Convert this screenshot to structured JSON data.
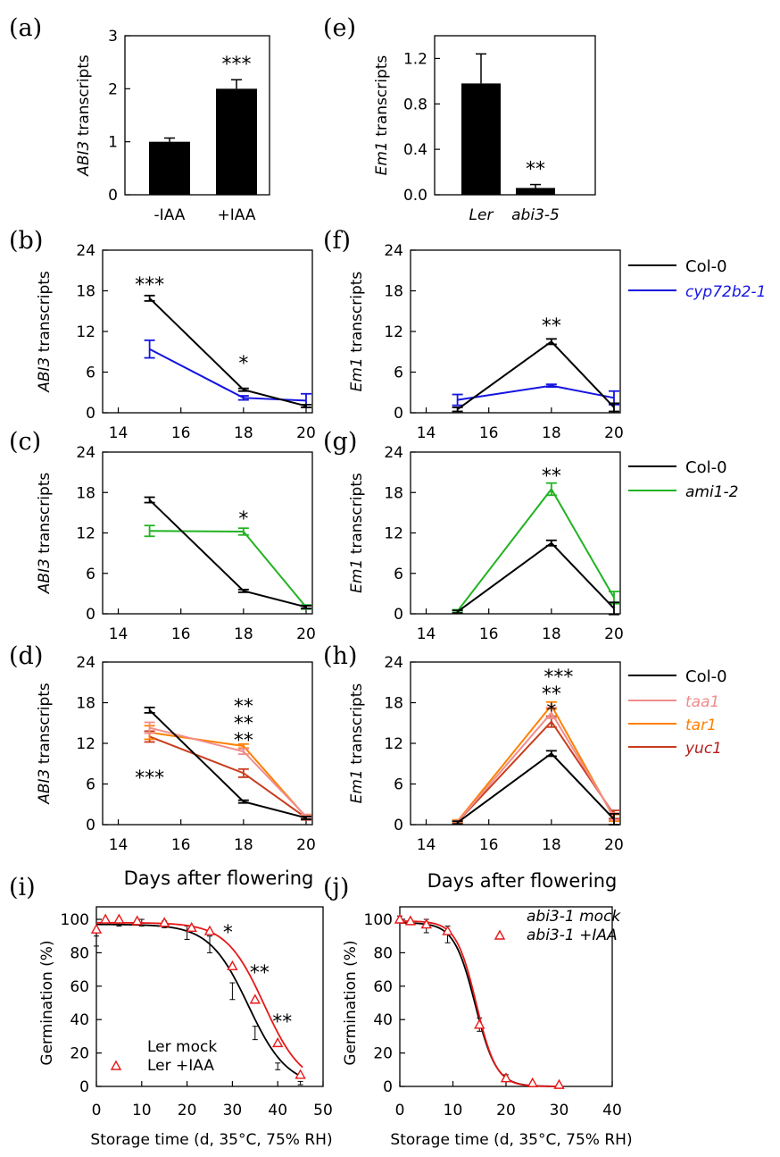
{
  "colors": {
    "black": "#000000",
    "blue": "#1515e0",
    "green": "#22b322",
    "pink": "#f08c8c",
    "orange": "#ff8000",
    "darkred": "#c83c1e",
    "red": "#e61919"
  },
  "xlabel_days": "Days after flowering",
  "xlabel_storage": "Storage time (d, 35°C, 75% RH)",
  "chart_data": [
    {
      "panel": "(a)",
      "type": "bar",
      "categories": [
        "-IAA",
        "+IAA"
      ],
      "values": [
        1.0,
        2.0
      ],
      "errors": [
        0.07,
        0.17
      ],
      "ylabel_italic": "ABI3",
      "ylabel_rest": " transcripts",
      "ylim": [
        0,
        3
      ],
      "yticks": [
        "0",
        "1",
        "2",
        "3"
      ],
      "annotations": [
        "",
        "***"
      ]
    },
    {
      "panel": "(e)",
      "type": "bar",
      "categories_italic": [
        "Ler",
        "abi3-5"
      ],
      "values": [
        0.98,
        0.06
      ],
      "errors": [
        0.26,
        0.03
      ],
      "ylabel_italic": "Em1",
      "ylabel_rest": " transcripts",
      "ylim": [
        0,
        1.4
      ],
      "yticks": [
        "0.0",
        "0.4",
        "0.8",
        "1.2"
      ],
      "annotations": [
        "",
        "**"
      ]
    },
    {
      "panel": "(b)",
      "type": "line",
      "x": [
        15,
        18,
        20
      ],
      "xticks": [
        "14",
        "16",
        "18",
        "20"
      ],
      "ylabel_italic": "ABI3",
      "ylabel_rest": " transcripts",
      "ylim": [
        0,
        24
      ],
      "yticks": [
        "0",
        "6",
        "12",
        "18",
        "24"
      ],
      "series": [
        {
          "name": "Col-0",
          "color": "#000000",
          "values": [
            16.9,
            3.4,
            1.0
          ],
          "errors": [
            0.4,
            0.2,
            0.2
          ]
        },
        {
          "name": "cyp72b2-1",
          "color": "#1515e0",
          "values": [
            9.4,
            2.2,
            1.8
          ],
          "errors": [
            1.3,
            0.3,
            1.0
          ]
        }
      ],
      "annotations": [
        {
          "x": 15,
          "text": "***"
        },
        {
          "x": 18,
          "text": "*"
        }
      ]
    },
    {
      "panel": "(f)",
      "type": "line",
      "x": [
        15,
        18,
        20
      ],
      "xticks": [
        "14",
        "16",
        "18",
        "20"
      ],
      "ylabel_italic": "Em1",
      "ylabel_rest": " transcripts",
      "ylim": [
        0,
        24
      ],
      "yticks": [
        "0",
        "6",
        "12",
        "18",
        "24"
      ],
      "series": [
        {
          "name": "Col-0",
          "color": "#000000",
          "values": [
            0.5,
            10.5,
            0.8
          ],
          "errors": [
            0.3,
            0.4,
            0.6
          ]
        },
        {
          "name": "cyp72b2-1",
          "color": "#1515e0",
          "values": [
            1.9,
            4.0,
            2.2
          ],
          "errors": [
            0.8,
            0.2,
            1.0
          ]
        }
      ],
      "annotations": [
        {
          "x": 18,
          "text": "**"
        }
      ]
    },
    {
      "panel": "(c)",
      "type": "line",
      "x": [
        15,
        18,
        20
      ],
      "xticks": [
        "14",
        "16",
        "18",
        "20"
      ],
      "ylabel_italic": "ABI3",
      "ylabel_rest": " transcripts",
      "ylim": [
        0,
        24
      ],
      "yticks": [
        "0",
        "6",
        "12",
        "18",
        "24"
      ],
      "series": [
        {
          "name": "Col-0",
          "color": "#000000",
          "values": [
            16.9,
            3.4,
            1.0
          ],
          "errors": [
            0.4,
            0.2,
            0.2
          ]
        },
        {
          "name": "ami1-2",
          "color": "#22b322",
          "values": [
            12.3,
            12.2,
            1.0
          ],
          "errors": [
            0.8,
            0.5,
            0.3
          ]
        }
      ],
      "annotations": [
        {
          "x": 18,
          "text": "*"
        }
      ]
    },
    {
      "panel": "(g)",
      "type": "line",
      "x": [
        15,
        18,
        20
      ],
      "xticks": [
        "14",
        "16",
        "18",
        "20"
      ],
      "ylabel_italic": "Em1",
      "ylabel_rest": " transcripts",
      "ylim": [
        0,
        24
      ],
      "yticks": [
        "0",
        "6",
        "12",
        "18",
        "24"
      ],
      "series": [
        {
          "name": "Col-0",
          "color": "#000000",
          "values": [
            0.3,
            10.5,
            0.8
          ],
          "errors": [
            0.2,
            0.4,
            0.9
          ]
        },
        {
          "name": "ami1-2",
          "color": "#22b322",
          "values": [
            0.4,
            18.5,
            2.4
          ],
          "errors": [
            0.2,
            0.9,
            0.9
          ]
        }
      ],
      "annotations": [
        {
          "x": 18,
          "text": "**"
        }
      ]
    },
    {
      "panel": "(d)",
      "type": "line",
      "x": [
        15,
        18,
        20
      ],
      "xticks": [
        "14",
        "16",
        "18",
        "20"
      ],
      "ylabel_italic": "ABI3",
      "ylabel_rest": " transcripts",
      "ylim": [
        0,
        24
      ],
      "yticks": [
        "0",
        "6",
        "12",
        "18",
        "24"
      ],
      "series": [
        {
          "name": "Col-0",
          "color": "#000000",
          "values": [
            16.9,
            3.4,
            1.0
          ],
          "errors": [
            0.4,
            0.2,
            0.2
          ]
        },
        {
          "name": "taa1",
          "color": "#f08c8c",
          "values": [
            14.3,
            10.8,
            1.2
          ],
          "errors": [
            0.8,
            0.4,
            0.3
          ]
        },
        {
          "name": "tar1",
          "color": "#ff8000",
          "values": [
            13.6,
            11.6,
            1.1
          ],
          "errors": [
            1.0,
            0.3,
            0.3
          ]
        },
        {
          "name": "yuc1",
          "color": "#c83c1e",
          "values": [
            13.0,
            7.6,
            1.0
          ],
          "errors": [
            0.8,
            0.6,
            0.3
          ]
        }
      ],
      "annotations": [
        {
          "x": 18,
          "text": "**"
        },
        {
          "x": 18,
          "text": "**"
        },
        {
          "x": 18,
          "text": "**"
        },
        {
          "x": 15,
          "text": "***"
        }
      ]
    },
    {
      "panel": "(h)",
      "type": "line",
      "x": [
        15,
        18,
        20
      ],
      "xticks": [
        "14",
        "16",
        "18",
        "20"
      ],
      "ylabel_italic": "Em1",
      "ylabel_rest": " transcripts",
      "ylim": [
        0,
        24
      ],
      "yticks": [
        "0",
        "6",
        "12",
        "18",
        "24"
      ],
      "series": [
        {
          "name": "Col-0",
          "color": "#000000",
          "values": [
            0.3,
            10.5,
            0.8
          ],
          "errors": [
            0.2,
            0.4,
            0.8
          ]
        },
        {
          "name": "taa1",
          "color": "#f08c8c",
          "values": [
            0.4,
            16.5,
            1.2
          ],
          "errors": [
            0.2,
            0.8,
            0.5
          ]
        },
        {
          "name": "tar1",
          "color": "#ff8000",
          "values": [
            0.5,
            17.6,
            1.0
          ],
          "errors": [
            0.2,
            0.5,
            0.5
          ]
        },
        {
          "name": "yuc1",
          "color": "#c83c1e",
          "values": [
            0.4,
            15.2,
            1.5
          ],
          "errors": [
            0.2,
            0.8,
            0.6
          ]
        }
      ],
      "annotations": [
        {
          "x": 18,
          "text": "***"
        },
        {
          "x": 18,
          "text": "**"
        },
        {
          "x": 18,
          "text": "*"
        }
      ]
    },
    {
      "panel": "(i)",
      "type": "scatter",
      "xlabel": "Storage time (d, 35°C, 75% RH)",
      "ylabel": "Germination (%)",
      "xlim": [
        0,
        50
      ],
      "ylim": [
        0,
        100
      ],
      "xticks": [
        "0",
        "10",
        "20",
        "30",
        "40",
        "50"
      ],
      "yticks": [
        "0",
        "20",
        "40",
        "60",
        "80",
        "100"
      ],
      "series": [
        {
          "name": "Ler mock",
          "color": "#000000",
          "marker": "none",
          "x": [
            0,
            5,
            10,
            15,
            20,
            25,
            30,
            35,
            40,
            45
          ],
          "values": [
            87,
            98,
            98,
            97,
            92,
            85,
            57,
            32,
            12,
            2
          ],
          "errors": [
            3,
            2,
            2,
            2,
            4,
            5,
            5,
            4,
            2,
            1
          ],
          "fit": {
            "top": 97,
            "x50": 33.5,
            "slope": 4.3
          }
        },
        {
          "name": "Ler +IAA",
          "color": "#e61919",
          "marker": "triangle",
          "x": [
            0,
            2,
            5,
            9,
            15,
            21,
            25,
            30,
            35,
            40,
            45
          ],
          "values": [
            94,
            100,
            100,
            99,
            98,
            95,
            93,
            72,
            52,
            26,
            7
          ],
          "fit": {
            "top": 98,
            "x50": 37,
            "slope": 4.2
          }
        }
      ],
      "annotations": [
        {
          "x": 29,
          "text": "*"
        },
        {
          "x": 36,
          "text": "**"
        },
        {
          "x": 41,
          "text": "**"
        }
      ]
    },
    {
      "panel": "(j)",
      "type": "scatter",
      "xlabel": "Storage time (d, 35°C, 75% RH)",
      "ylabel": "Germination (%)",
      "xlim": [
        0,
        40
      ],
      "ylim": [
        0,
        100
      ],
      "xticks": [
        "0",
        "10",
        "20",
        "30",
        "40"
      ],
      "yticks": [
        "0",
        "20",
        "40",
        "60",
        "80",
        "100"
      ],
      "series": [
        {
          "name": "abi3-1 mock",
          "color": "#000000",
          "marker": "none",
          "x": [
            0,
            5,
            9,
            15,
            20,
            25,
            30
          ],
          "values": [
            100,
            96,
            91,
            37,
            5,
            1,
            0
          ],
          "errors": [
            2,
            4,
            5,
            4,
            2,
            1,
            0
          ],
          "fit": {
            "top": 98,
            "x50": 14.2,
            "slope": 2.0
          }
        },
        {
          "name": "abi3-1 +IAA",
          "color": "#e61919",
          "marker": "triangle",
          "x": [
            0,
            2,
            5,
            9,
            15,
            20,
            25,
            30
          ],
          "values": [
            100,
            99,
            97,
            93,
            37,
            5,
            2,
            1
          ],
          "fit": {
            "top": 99,
            "x50": 14.4,
            "slope": 1.9
          }
        }
      ]
    }
  ]
}
